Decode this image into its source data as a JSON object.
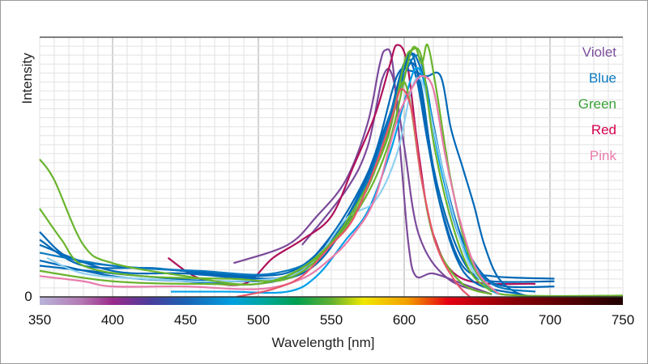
{
  "chart_data": {
    "type": "line",
    "title": "",
    "xlabel": "Wavelength [nm]",
    "ylabel": "Intensity",
    "xlim": [
      350,
      750
    ],
    "ylim": [
      0,
      1
    ],
    "xticks": [
      "350",
      "400",
      "450",
      "500",
      "550",
      "600",
      "650",
      "700",
      "750"
    ],
    "yticks": [
      "0"
    ],
    "grid": true,
    "legend_placement": "top-right",
    "legend": [
      {
        "label": "Violet",
        "color": "#7d4f9c"
      },
      {
        "label": "Blue",
        "color": "#0a79c0"
      },
      {
        "label": "Green",
        "color": "#3aa037"
      },
      {
        "label": "Red",
        "color": "#d4004f"
      },
      {
        "label": "Pink",
        "color": "#e87bab"
      }
    ],
    "colorbar": "visible spectrum 350-750 nm",
    "series": [
      {
        "group": "Violet",
        "color": "#7b4a9a",
        "points": [
          [
            483,
            0.13
          ],
          [
            520,
            0.2
          ],
          [
            540,
            0.31
          ],
          [
            560,
            0.45
          ],
          [
            575,
            0.67
          ],
          [
            583,
            0.89
          ],
          [
            587,
            0.95
          ],
          [
            592,
            0.9
          ],
          [
            598,
            0.52
          ],
          [
            603,
            0.2
          ],
          [
            608,
            0.08
          ],
          [
            620,
            0.09
          ],
          [
            640,
            0.05
          ],
          [
            660,
            0.01
          ]
        ]
      },
      {
        "group": "Violet",
        "color": "#7b4a9a",
        "points": [
          [
            530,
            0.2
          ],
          [
            560,
            0.41
          ],
          [
            575,
            0.58
          ],
          [
            585,
            0.84
          ],
          [
            592,
            0.85
          ],
          [
            600,
            0.58
          ],
          [
            610,
            0.24
          ],
          [
            630,
            0.07
          ],
          [
            660,
            0.01
          ]
        ]
      },
      {
        "group": "Red",
        "color": "#b0105a",
        "points": [
          [
            438,
            0.15
          ],
          [
            460,
            0.07
          ],
          [
            490,
            0.05
          ],
          [
            510,
            0.15
          ],
          [
            530,
            0.22
          ],
          [
            550,
            0.31
          ],
          [
            565,
            0.5
          ],
          [
            580,
            0.7
          ],
          [
            590,
            0.89
          ],
          [
            595,
            0.97
          ],
          [
            602,
            0.9
          ],
          [
            610,
            0.55
          ],
          [
            620,
            0.24
          ],
          [
            640,
            0.07
          ],
          [
            690,
            0.05
          ]
        ]
      },
      {
        "group": "Blue",
        "color": "#0068b7",
        "points": [
          [
            350,
            0.25
          ],
          [
            370,
            0.15
          ],
          [
            400,
            0.12
          ],
          [
            450,
            0.1
          ],
          [
            500,
            0.08
          ],
          [
            530,
            0.12
          ],
          [
            560,
            0.3
          ],
          [
            580,
            0.55
          ],
          [
            595,
            0.85
          ],
          [
            605,
            0.87
          ],
          [
            615,
            0.85
          ],
          [
            625,
            0.85
          ],
          [
            632,
            0.65
          ],
          [
            640,
            0.5
          ],
          [
            648,
            0.35
          ],
          [
            655,
            0.2
          ],
          [
            665,
            0.07
          ],
          [
            680,
            0.01
          ],
          [
            700,
            0
          ]
        ]
      },
      {
        "group": "Blue",
        "color": "#0068b7",
        "points": [
          [
            350,
            0.22
          ],
          [
            380,
            0.12
          ],
          [
            430,
            0.11
          ],
          [
            480,
            0.08
          ],
          [
            520,
            0.08
          ],
          [
            545,
            0.2
          ],
          [
            570,
            0.42
          ],
          [
            590,
            0.68
          ],
          [
            600,
            0.85
          ],
          [
            606,
            0.9
          ],
          [
            612,
            0.8
          ],
          [
            620,
            0.5
          ],
          [
            632,
            0.25
          ],
          [
            645,
            0.1
          ],
          [
            660,
            0.06
          ],
          [
            703,
            0.06
          ]
        ]
      },
      {
        "group": "Blue",
        "color": "#0068b7",
        "points": [
          [
            350,
            0.2
          ],
          [
            400,
            0.1
          ],
          [
            450,
            0.09
          ],
          [
            500,
            0.07
          ],
          [
            530,
            0.1
          ],
          [
            560,
            0.3
          ],
          [
            585,
            0.6
          ],
          [
            600,
            0.9
          ],
          [
            608,
            0.85
          ],
          [
            616,
            0.6
          ],
          [
            625,
            0.35
          ],
          [
            640,
            0.12
          ],
          [
            660,
            0.08
          ],
          [
            703,
            0.07
          ]
        ]
      },
      {
        "group": "Blue",
        "color": "#0068b7",
        "points": [
          [
            350,
            0.14
          ],
          [
            400,
            0.08
          ],
          [
            450,
            0.06
          ],
          [
            500,
            0.05
          ],
          [
            535,
            0.12
          ],
          [
            565,
            0.35
          ],
          [
            590,
            0.7
          ],
          [
            603,
            0.92
          ],
          [
            610,
            0.9
          ],
          [
            618,
            0.72
          ],
          [
            628,
            0.45
          ],
          [
            640,
            0.22
          ],
          [
            655,
            0.08
          ],
          [
            670,
            0.04
          ],
          [
            703,
            0.04
          ]
        ]
      },
      {
        "group": "Blue",
        "color": "#0068b7",
        "points": [
          [
            350,
            0.12
          ],
          [
            420,
            0.08
          ],
          [
            480,
            0.06
          ],
          [
            530,
            0.09
          ],
          [
            560,
            0.28
          ],
          [
            588,
            0.62
          ],
          [
            600,
            0.88
          ],
          [
            606,
            0.93
          ],
          [
            614,
            0.7
          ],
          [
            622,
            0.42
          ],
          [
            635,
            0.16
          ],
          [
            650,
            0.05
          ],
          [
            680,
            0.01
          ]
        ]
      },
      {
        "group": "Blue",
        "color": "#0a79c0",
        "points": [
          [
            350,
            0.17
          ],
          [
            400,
            0.12
          ],
          [
            460,
            0.1
          ],
          [
            510,
            0.09
          ],
          [
            545,
            0.18
          ],
          [
            575,
            0.45
          ],
          [
            595,
            0.78
          ],
          [
            608,
            0.93
          ],
          [
            615,
            0.82
          ],
          [
            625,
            0.5
          ],
          [
            640,
            0.2
          ],
          [
            660,
            0.05
          ],
          [
            690,
            0.02
          ]
        ]
      },
      {
        "group": "Blue",
        "color": "#00a0e9",
        "points": [
          [
            440,
            0.02
          ],
          [
            480,
            0.02
          ],
          [
            520,
            0.02
          ],
          [
            540,
            0.08
          ],
          [
            560,
            0.22
          ],
          [
            575,
            0.33
          ],
          [
            590,
            0.55
          ],
          [
            600,
            0.75
          ],
          [
            608,
            0.88
          ],
          [
            615,
            0.8
          ],
          [
            625,
            0.5
          ],
          [
            640,
            0.2
          ],
          [
            655,
            0.05
          ],
          [
            665,
            0.01
          ]
        ]
      },
      {
        "group": "Blue",
        "color": "#8fd0f0",
        "points": [
          [
            355,
            0.15
          ],
          [
            380,
            0.09
          ],
          [
            420,
            0.07
          ],
          [
            480,
            0.06
          ],
          [
            530,
            0.1
          ],
          [
            560,
            0.3
          ],
          [
            580,
            0.37
          ],
          [
            595,
            0.55
          ],
          [
            605,
            0.8
          ],
          [
            612,
            0.83
          ],
          [
            620,
            0.65
          ],
          [
            632,
            0.35
          ],
          [
            645,
            0.12
          ],
          [
            660,
            0.03
          ]
        ]
      },
      {
        "group": "Green",
        "color": "#6ab42d",
        "points": [
          [
            350,
            0.53
          ],
          [
            360,
            0.45
          ],
          [
            380,
            0.2
          ],
          [
            400,
            0.13
          ],
          [
            450,
            0.08
          ],
          [
            500,
            0.05
          ],
          [
            540,
            0.15
          ],
          [
            570,
            0.35
          ],
          [
            590,
            0.6
          ],
          [
            605,
            0.95
          ],
          [
            612,
            0.9
          ],
          [
            616,
            0.97
          ],
          [
            622,
            0.8
          ],
          [
            632,
            0.45
          ],
          [
            645,
            0.15
          ],
          [
            660,
            0.03
          ],
          [
            680,
            0.005
          ],
          [
            750,
            0.005
          ]
        ]
      },
      {
        "group": "Green",
        "color": "#6ab42d",
        "points": [
          [
            350,
            0.34
          ],
          [
            365,
            0.22
          ],
          [
            380,
            0.12
          ],
          [
            420,
            0.08
          ],
          [
            480,
            0.07
          ],
          [
            520,
            0.07
          ],
          [
            550,
            0.2
          ],
          [
            575,
            0.42
          ],
          [
            592,
            0.7
          ],
          [
            600,
            0.9
          ],
          [
            605,
            0.95
          ],
          [
            612,
            0.92
          ],
          [
            620,
            0.6
          ],
          [
            632,
            0.3
          ],
          [
            645,
            0.1
          ],
          [
            660,
            0.02
          ]
        ]
      },
      {
        "group": "Green",
        "color": "#6ab42d",
        "points": [
          [
            350,
            0.1
          ],
          [
            400,
            0.06
          ],
          [
            460,
            0.05
          ],
          [
            510,
            0.06
          ],
          [
            545,
            0.18
          ],
          [
            570,
            0.38
          ],
          [
            588,
            0.6
          ],
          [
            598,
            0.82
          ],
          [
            604,
            0.75
          ],
          [
            612,
            0.45
          ],
          [
            622,
            0.2
          ],
          [
            640,
            0.05
          ],
          [
            660,
            0.01
          ]
        ]
      },
      {
        "group": "Pink",
        "color": "#e87bab",
        "points": [
          [
            350,
            0.08
          ],
          [
            380,
            0.06
          ],
          [
            400,
            0.04
          ],
          [
            450,
            0.04
          ],
          [
            500,
            0.03
          ],
          [
            530,
            0.07
          ],
          [
            550,
            0.15
          ],
          [
            565,
            0.24
          ],
          [
            580,
            0.38
          ],
          [
            595,
            0.68
          ],
          [
            605,
            0.8
          ],
          [
            612,
            0.85
          ],
          [
            620,
            0.8
          ],
          [
            628,
            0.55
          ],
          [
            638,
            0.3
          ],
          [
            650,
            0.1
          ],
          [
            665,
            0.01
          ]
        ]
      },
      {
        "group": "Pink",
        "color": "#e8556a",
        "points": [
          [
            485,
            0.0
          ],
          [
            510,
            0.03
          ],
          [
            530,
            0.08
          ],
          [
            550,
            0.2
          ],
          [
            565,
            0.3
          ],
          [
            580,
            0.5
          ],
          [
            592,
            0.7
          ],
          [
            598,
            0.8
          ],
          [
            605,
            0.72
          ],
          [
            612,
            0.45
          ],
          [
            622,
            0.2
          ],
          [
            635,
            0.06
          ],
          [
            645,
            0
          ]
        ]
      }
    ]
  }
}
